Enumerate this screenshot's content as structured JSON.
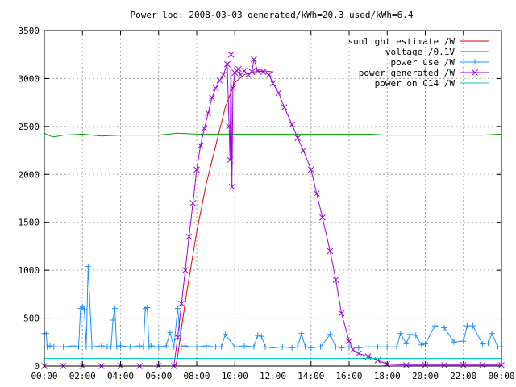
{
  "chart_data": {
    "type": "line",
    "title": "Power log: 2008-03-03 generated/kWh=20.3 used/kWh=6.4",
    "xlabel": "",
    "ylabel": "",
    "xlim": [
      0,
      24
    ],
    "ylim": [
      0,
      3500
    ],
    "grid": true,
    "legend_position": "top-right",
    "x_ticks": [
      {
        "value": 0,
        "label": "00:00"
      },
      {
        "value": 2,
        "label": "02:00"
      },
      {
        "value": 4,
        "label": "04:00"
      },
      {
        "value": 6,
        "label": "06:00"
      },
      {
        "value": 8,
        "label": "08:00"
      },
      {
        "value": 10,
        "label": "10:00"
      },
      {
        "value": 12,
        "label": "12:00"
      },
      {
        "value": 14,
        "label": "14:00"
      },
      {
        "value": 16,
        "label": "16:00"
      },
      {
        "value": 18,
        "label": "18:00"
      },
      {
        "value": 20,
        "label": "20:00"
      },
      {
        "value": 22,
        "label": "22:00"
      },
      {
        "value": 24,
        "label": "00:00"
      }
    ],
    "y_ticks": [
      {
        "value": 0,
        "label": "0"
      },
      {
        "value": 500,
        "label": "500"
      },
      {
        "value": 1000,
        "label": "1000"
      },
      {
        "value": 1500,
        "label": "1500"
      },
      {
        "value": 2000,
        "label": "2000"
      },
      {
        "value": 2500,
        "label": "2500"
      },
      {
        "value": 3000,
        "label": "3000"
      },
      {
        "value": 3500,
        "label": "3500"
      }
    ],
    "series": [
      {
        "name": "sunlight estimate /W",
        "color": "#e00000",
        "marker": "none",
        "x": [
          0,
          6.9,
          7.0,
          7.2,
          7.5,
          8.0,
          8.5,
          9.0,
          9.5,
          10.0,
          10.5,
          11.0,
          11.5,
          12.0
        ],
        "y": [
          0,
          0,
          100,
          400,
          800,
          1400,
          1900,
          2300,
          2700,
          2960,
          3040,
          3070,
          3080,
          3070
        ]
      },
      {
        "name": "voltage /0.1V",
        "color": "#00a000",
        "marker": "none",
        "x": [
          0,
          0.3,
          0.5,
          1,
          2,
          3,
          4,
          5,
          6,
          7,
          8,
          9,
          10,
          11,
          12,
          13,
          14,
          15,
          16,
          17,
          18,
          19,
          20,
          21,
          22,
          23,
          24
        ],
        "y": [
          2430,
          2400,
          2390,
          2410,
          2420,
          2400,
          2410,
          2410,
          2410,
          2430,
          2420,
          2420,
          2420,
          2420,
          2420,
          2420,
          2420,
          2420,
          2420,
          2420,
          2410,
          2410,
          2410,
          2410,
          2410,
          2410,
          2420
        ]
      },
      {
        "name": "power use /W",
        "color": "#1e90ff",
        "marker": "plus",
        "x": [
          0,
          0.1,
          0.15,
          0.3,
          0.5,
          1.0,
          1.5,
          1.8,
          1.9,
          2.0,
          2.1,
          2.2,
          2.3,
          2.5,
          3.0,
          3.3,
          3.5,
          3.6,
          3.7,
          3.8,
          4.0,
          4.5,
          5.0,
          5.2,
          5.3,
          5.4,
          5.5,
          5.6,
          6.0,
          6.4,
          6.6,
          6.8,
          7.0,
          7.2,
          7.4,
          7.6,
          8.0,
          8.5,
          9.0,
          9.3,
          9.5,
          10.0,
          10.5,
          11.0,
          11.2,
          11.4,
          11.6,
          12.0,
          12.5,
          13.0,
          13.3,
          13.5,
          13.7,
          14.0,
          14.5,
          15.0,
          15.3,
          15.6,
          16.0,
          16.5,
          17.0,
          17.5,
          18.0,
          18.5,
          18.7,
          19.0,
          19.2,
          19.5,
          19.8,
          20.0,
          20.5,
          21.0,
          21.5,
          22.0,
          22.2,
          22.5,
          23.0,
          23.3,
          23.5,
          23.8,
          24.0
        ],
        "y": [
          340,
          340,
          200,
          210,
          200,
          200,
          210,
          200,
          600,
          620,
          590,
          200,
          1040,
          200,
          210,
          200,
          200,
          480,
          600,
          200,
          210,
          200,
          210,
          200,
          600,
          610,
          200,
          210,
          200,
          210,
          350,
          200,
          600,
          200,
          210,
          200,
          200,
          210,
          200,
          200,
          330,
          200,
          210,
          200,
          320,
          310,
          200,
          190,
          200,
          190,
          200,
          340,
          200,
          190,
          200,
          330,
          200,
          190,
          200,
          190,
          200,
          200,
          200,
          200,
          340,
          230,
          330,
          320,
          220,
          230,
          420,
          400,
          250,
          260,
          420,
          420,
          230,
          240,
          340,
          200,
          200
        ]
      },
      {
        "name": "power generated /W",
        "color": "#a000e0",
        "marker": "cross",
        "x": [
          0,
          1,
          2,
          3,
          4,
          5,
          6,
          6.8,
          7.0,
          7.2,
          7.4,
          7.6,
          7.8,
          8.0,
          8.2,
          8.4,
          8.6,
          8.8,
          9.0,
          9.2,
          9.4,
          9.6,
          9.7,
          9.75,
          9.8,
          9.85,
          9.9,
          10.0,
          10.1,
          10.2,
          10.3,
          10.5,
          10.7,
          10.9,
          11.0,
          11.2,
          11.5,
          11.8,
          12.0,
          12.3,
          12.6,
          13.0,
          13.3,
          13.6,
          14.0,
          14.3,
          14.6,
          15.0,
          15.3,
          15.6,
          16.0,
          16.2,
          16.5,
          17.0,
          17.5,
          18.0,
          19.0,
          20.0,
          21.0,
          22.0,
          23.0,
          24.0
        ],
        "y": [
          0,
          0,
          0,
          0,
          0,
          0,
          0,
          0,
          300,
          650,
          1000,
          1350,
          1700,
          2050,
          2300,
          2480,
          2640,
          2800,
          2900,
          2980,
          3040,
          3150,
          2500,
          2150,
          3250,
          1870,
          2900,
          3060,
          3080,
          3100,
          3040,
          3080,
          3040,
          3070,
          3200,
          3080,
          3070,
          3040,
          2950,
          2850,
          2700,
          2520,
          2380,
          2250,
          2050,
          1800,
          1550,
          1200,
          900,
          550,
          260,
          170,
          130,
          100,
          60,
          20,
          10,
          10,
          10,
          10,
          10,
          10
        ]
      },
      {
        "name": "power on C14 /W",
        "color": "#00c8c8",
        "marker": "none",
        "x": [
          0,
          24
        ],
        "y": [
          80,
          80
        ]
      }
    ]
  }
}
